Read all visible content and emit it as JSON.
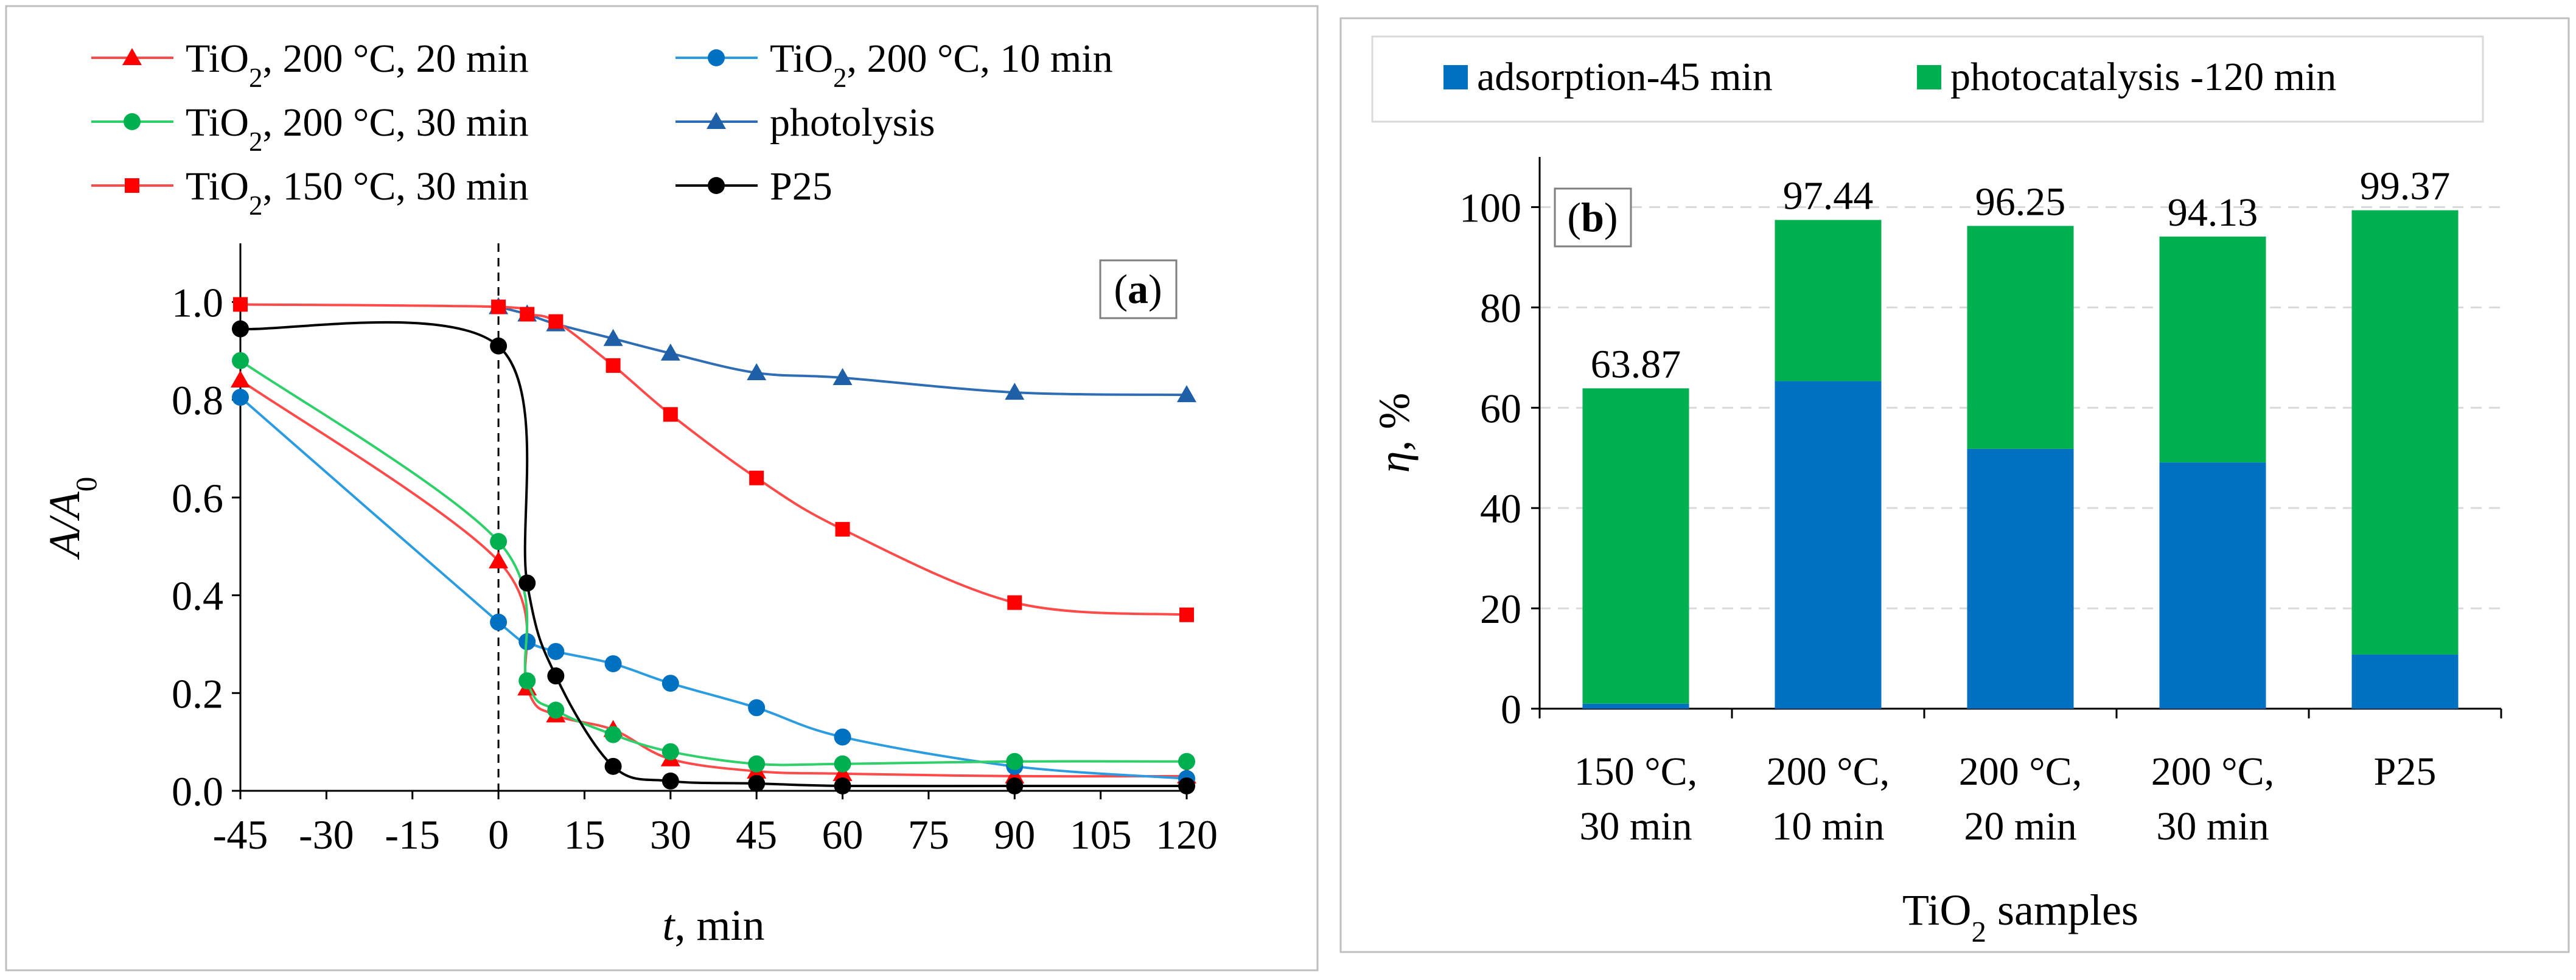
{
  "chart_data": [
    {
      "type": "line",
      "panel_label": "a",
      "xlabel_italic": "t",
      "xlabel_rest": ", min",
      "ylabel_main": "A/A",
      "ylabel_sub": "0",
      "xlim": [
        -45,
        120
      ],
      "ylim": [
        0.0,
        1.0
      ],
      "x_ticks": [
        -45,
        -30,
        -15,
        0,
        15,
        30,
        45,
        60,
        75,
        90,
        105,
        120
      ],
      "y_ticks": [
        "0.0",
        "0.2",
        "0.4",
        "0.6",
        "0.8",
        "1.0"
      ],
      "y_tick_values": [
        0.0,
        0.2,
        0.4,
        0.6,
        0.8,
        1.0
      ],
      "dashed_line_x": 0,
      "legend_position": "top",
      "series": [
        {
          "name_pre": "TiO",
          "name_sub": "2",
          "name_post": ", 200 °C, 20 min",
          "color": "#ff0000",
          "line_color": "#ff4a4a",
          "marker": "triangle",
          "x": [
            -45,
            0,
            5,
            10,
            20,
            30,
            45,
            60,
            90,
            120
          ],
          "y": [
            0.84,
            0.47,
            0.21,
            0.155,
            0.125,
            0.065,
            0.04,
            0.035,
            0.03,
            0.03
          ]
        },
        {
          "name_pre": "TiO",
          "name_sub": "2",
          "name_post": ", 200 °C, 10 min",
          "color": "#0070c0",
          "line_color": "#2b9ce0",
          "marker": "circle",
          "x": [
            -45,
            0,
            5,
            10,
            20,
            30,
            45,
            60,
            90,
            120
          ],
          "y": [
            0.805,
            0.345,
            0.305,
            0.285,
            0.26,
            0.22,
            0.17,
            0.11,
            0.05,
            0.025
          ]
        },
        {
          "name_pre": "TiO",
          "name_sub": "2",
          "name_post": ", 200 °C, 30 min",
          "color": "#00b050",
          "line_color": "#2fcf6a",
          "marker": "circle",
          "x": [
            -45,
            0,
            5,
            10,
            20,
            30,
            45,
            60,
            90,
            120
          ],
          "y": [
            0.88,
            0.51,
            0.225,
            0.165,
            0.115,
            0.08,
            0.055,
            0.055,
            0.06,
            0.06
          ]
        },
        {
          "name_pre": "photolysis",
          "name_sub": "",
          "name_post": "",
          "color": "#1f5fa8",
          "line_color": "#2e6db3",
          "marker": "triangle",
          "x": [
            0,
            5,
            10,
            20,
            30,
            45,
            60,
            90,
            120
          ],
          "y": [
            0.99,
            0.975,
            0.955,
            0.925,
            0.895,
            0.855,
            0.845,
            0.815,
            0.81
          ]
        },
        {
          "name_pre": "TiO",
          "name_sub": "2",
          "name_post": ", 150 °C, 30 min",
          "color": "#ff0000",
          "line_color": "#ff4a4a",
          "marker": "square",
          "x": [
            -45,
            0,
            5,
            10,
            20,
            30,
            45,
            60,
            90,
            120
          ],
          "y": [
            0.995,
            0.99,
            0.975,
            0.96,
            0.87,
            0.77,
            0.64,
            0.535,
            0.385,
            0.36
          ]
        },
        {
          "name_pre": "P25",
          "name_sub": "",
          "name_post": "",
          "color": "#000000",
          "line_color": "#000000",
          "marker": "circle",
          "x": [
            -45,
            0,
            5,
            10,
            20,
            30,
            45,
            60,
            90,
            120
          ],
          "y": [
            0.945,
            0.91,
            0.425,
            0.235,
            0.05,
            0.02,
            0.015,
            0.01,
            0.01,
            0.01
          ]
        }
      ]
    },
    {
      "type": "bar",
      "panel_label": "b",
      "stacked": true,
      "ylabel_italic": "η",
      "ylabel_rest": ", %",
      "xlabel_pre": "TiO",
      "xlabel_sub": "2",
      "xlabel_post": " samples",
      "ylim": [
        0,
        100
      ],
      "y_ticks": [
        0,
        20,
        40,
        60,
        80,
        100
      ],
      "grid": true,
      "legend_position": "top",
      "categories": [
        [
          "150 °C,",
          "30 min"
        ],
        [
          "200 °C,",
          "10 min"
        ],
        [
          "200 °C,",
          "20 min"
        ],
        [
          "200 °C,",
          "30 min"
        ],
        [
          "P25"
        ]
      ],
      "series": [
        {
          "name": "adsorption-45 min",
          "color": "#0070c0",
          "values": [
            1.0,
            65.3,
            51.8,
            49.1,
            10.8
          ]
        },
        {
          "name": "photocatalysis -120 min",
          "color": "#00b050",
          "values": [
            62.87,
            32.14,
            44.45,
            45.03,
            88.57
          ]
        }
      ],
      "total_labels": [
        "63.87",
        "97.44",
        "96.25",
        "94.13",
        "99.37"
      ],
      "totals": [
        63.87,
        97.44,
        96.25,
        94.13,
        99.37
      ]
    }
  ]
}
